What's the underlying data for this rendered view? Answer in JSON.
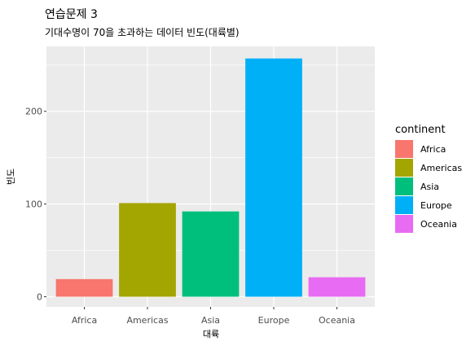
{
  "chart_data": {
    "type": "bar",
    "title": "연습문제 3",
    "subtitle": "기대수명이 70을 초과하는 데이터 빈도(대륙별)",
    "xlabel": "대륙",
    "ylabel": "빈도",
    "categories": [
      "Africa",
      "Americas",
      "Asia",
      "Europe",
      "Oceania"
    ],
    "values": [
      19,
      101,
      92,
      257,
      21
    ],
    "colors": [
      "#F8766D",
      "#A3A500",
      "#00BF7D",
      "#00B0F6",
      "#E76BF3"
    ],
    "ylim": [
      -11,
      270
    ],
    "yticks": [
      0,
      100,
      200
    ],
    "ytick_labels": [
      "0",
      "100",
      "200"
    ],
    "grid": true,
    "legend": {
      "title": "continent",
      "placement": "right",
      "items": [
        "Africa",
        "Americas",
        "Asia",
        "Europe",
        "Oceania"
      ]
    }
  }
}
